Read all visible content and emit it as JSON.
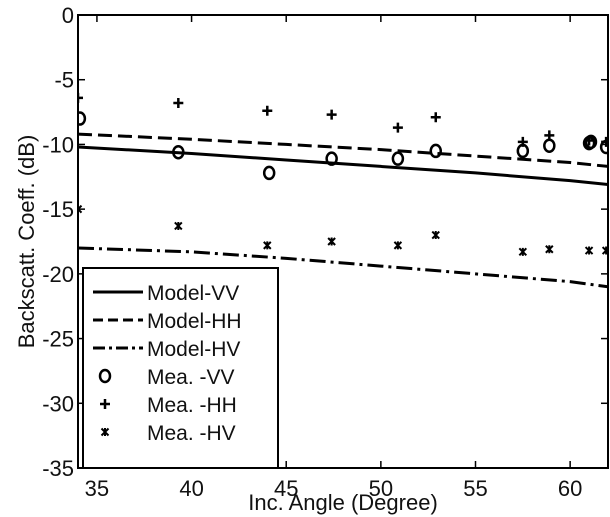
{
  "chart_data": {
    "type": "line",
    "title": "",
    "xlabel": "Inc. Angle (Degree)",
    "ylabel": "Backscatt. Coeff. (dB)",
    "xlim": [
      34,
      62
    ],
    "ylim": [
      -35,
      0
    ],
    "xticks": [
      35,
      40,
      45,
      50,
      55,
      60
    ],
    "yticks": [
      0,
      -5,
      -10,
      -15,
      -20,
      -25,
      -30,
      -35
    ],
    "xtick_labels": [
      "35",
      "40",
      "45",
      "50",
      "55",
      "60"
    ],
    "ytick_labels": [
      "0",
      "-5",
      "-10",
      "-15",
      "-20",
      "-25",
      "-30",
      "-35"
    ],
    "grid": false,
    "legend_position": "lower-left",
    "series": [
      {
        "name": "Model-VV",
        "kind": "line",
        "style": "solid",
        "color": "#000000",
        "x": [
          34,
          40,
          45,
          50,
          55,
          60,
          62
        ],
        "y": [
          -10.2,
          -10.7,
          -11.2,
          -11.7,
          -12.2,
          -12.8,
          -13.1
        ]
      },
      {
        "name": "Model-HH",
        "kind": "line",
        "style": "dashed",
        "color": "#000000",
        "x": [
          34,
          40,
          45,
          50,
          55,
          60,
          62
        ],
        "y": [
          -9.2,
          -9.6,
          -10.0,
          -10.4,
          -10.9,
          -11.4,
          -11.7
        ]
      },
      {
        "name": "Model-HV",
        "kind": "line",
        "style": "dashdot",
        "color": "#000000",
        "x": [
          34,
          40,
          45,
          50,
          55,
          60,
          62
        ],
        "y": [
          -18.0,
          -18.3,
          -18.8,
          -19.4,
          -20.0,
          -20.6,
          -21.0
        ]
      },
      {
        "name": "Mea.    -VV",
        "kind": "scatter",
        "marker": "circle",
        "color": "#000000",
        "x": [
          34.1,
          39.3,
          44.1,
          47.4,
          50.9,
          52.9,
          57.5,
          58.9,
          61.0,
          61.1,
          61.9
        ],
        "y": [
          -8.0,
          -10.6,
          -12.2,
          -11.1,
          -11.1,
          -10.5,
          -10.5,
          -10.1,
          -9.9,
          -9.8,
          -10.2
        ]
      },
      {
        "name": "Mea.    -HH",
        "kind": "scatter",
        "marker": "plus",
        "color": "#000000",
        "x": [
          34.0,
          39.3,
          44.0,
          47.4,
          50.9,
          52.9,
          57.5,
          58.9,
          61.0,
          61.9
        ],
        "y": [
          -6.4,
          -6.8,
          -7.4,
          -7.7,
          -8.7,
          -7.9,
          -9.8,
          -9.3,
          -9.7,
          -9.8
        ]
      },
      {
        "name": "Mea.    -HV",
        "kind": "scatter",
        "marker": "asterisk",
        "color": "#000000",
        "x": [
          34.0,
          39.3,
          44.0,
          47.4,
          50.9,
          52.9,
          57.5,
          58.9,
          61.0,
          61.9
        ],
        "y": [
          -15.0,
          -16.3,
          -17.8,
          -17.5,
          -17.8,
          -17.0,
          -18.3,
          -18.1,
          -18.2,
          -18.2
        ]
      }
    ]
  }
}
